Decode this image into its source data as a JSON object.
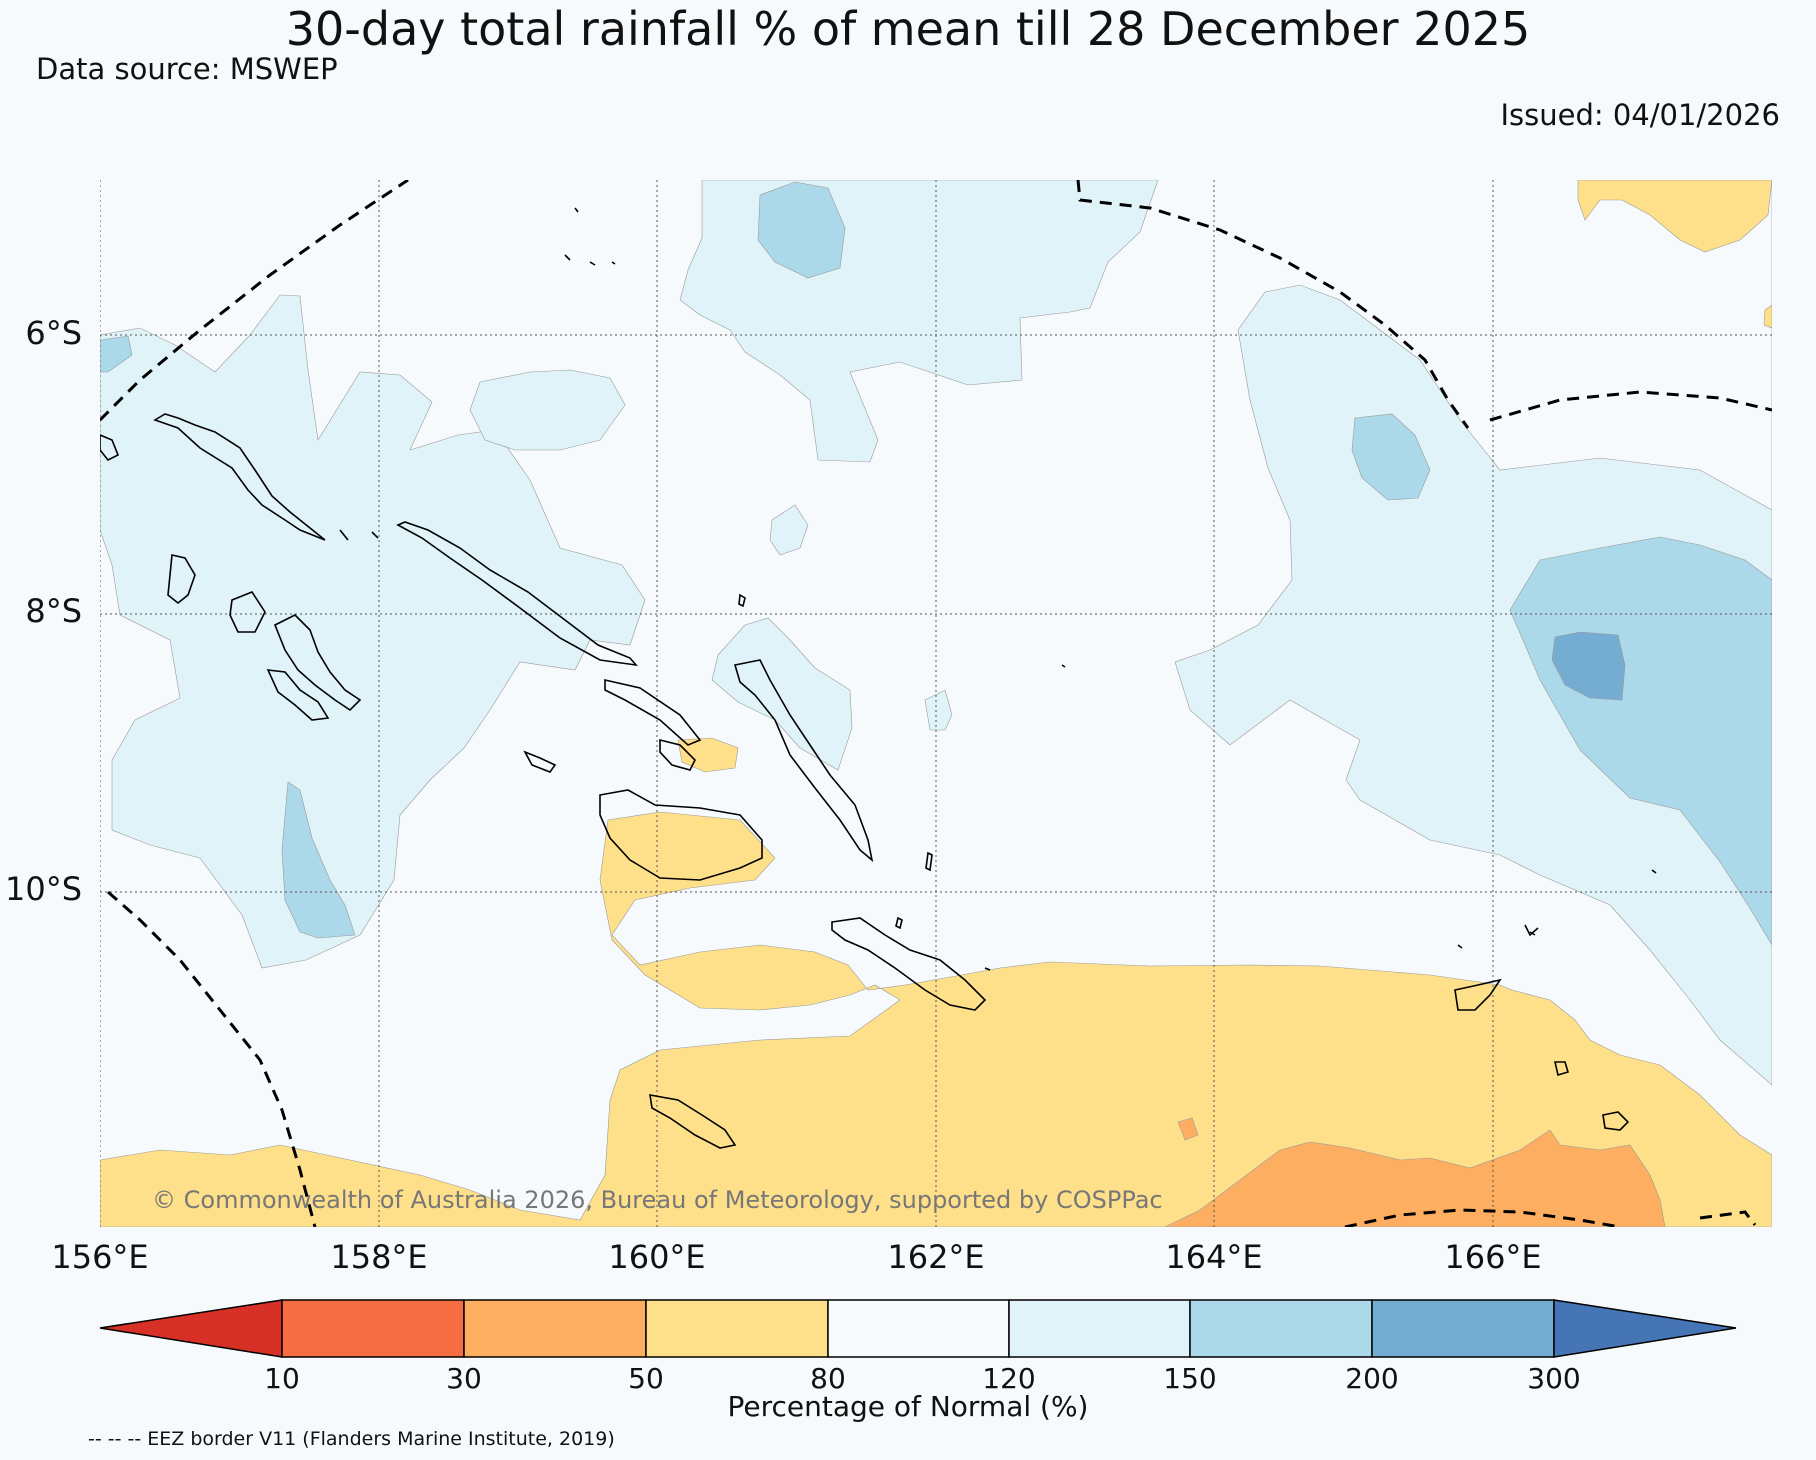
{
  "title": "30-day total rainfall % of mean till 28 December 2025",
  "data_source": "Data source: MSWEP",
  "issued": "Issued: 04/01/2026",
  "map": {
    "lat_labels": [
      "6°S",
      "8°S",
      "10°S"
    ],
    "lon_labels": [
      "156°E",
      "158°E",
      "160°E",
      "162°E",
      "164°E",
      "166°E"
    ],
    "copyright": "© Commonwealth of Australia 2026, Bureau of Meteorology, supported by COSPPac"
  },
  "colorbar": {
    "ticks": [
      "10",
      "30",
      "50",
      "80",
      "120",
      "150",
      "200",
      "300"
    ],
    "colors": [
      "#d73027",
      "#f46d43",
      "#fdae61",
      "#fee08b",
      "#f7fafc",
      "#e0f3f8",
      "#abd9e9",
      "#74add1",
      "#4575b4"
    ],
    "title": "Percentage of Normal (%)"
  },
  "footnote": "-- -- -- EEZ border V11 (Flanders Marine Institute, 2019)"
}
